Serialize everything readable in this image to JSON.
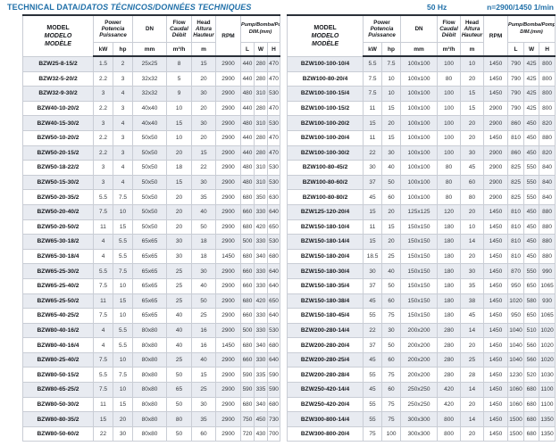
{
  "title": {
    "main": "TECHNICAL DATA/",
    "translations": "DATOS TÉCNICOS/DONNÉES TECHNIQUES",
    "frequency": "50 Hz",
    "speed": "n=2900/1450 1/min"
  },
  "header": {
    "model": [
      "MODEL",
      "MODELO",
      "MODÈLE"
    ],
    "power": [
      "Power",
      "Potencia",
      "Puissance"
    ],
    "dn": "DN",
    "flow": [
      "Flow",
      "Caudal",
      "Débit"
    ],
    "head": [
      "Head",
      "Altura",
      "Hauteur"
    ],
    "rpm": "RPM",
    "dim": [
      "Pump/Bomba/Pompe",
      "DIM.(mm)"
    ],
    "units": {
      "kw": "kW",
      "hp": "hp",
      "mm": "mm",
      "flow": "m³/h",
      "head": "m"
    },
    "dim_units": [
      "L",
      "W",
      "H"
    ]
  },
  "columns": [
    "MODEL",
    "kW",
    "hp",
    "DN (mm)",
    "Flow (m³/h)",
    "Head (m)",
    "RPM",
    "L (mm)",
    "W (mm)",
    "H (mm)"
  ],
  "left_table": {
    "rows": [
      [
        "BZW25-8-15/2",
        "1.5",
        "2",
        "25x25",
        "8",
        "15",
        "2900",
        "440",
        "280",
        "470"
      ],
      [
        "BZW32-5-20/2",
        "2.2",
        "3",
        "32x32",
        "5",
        "20",
        "2900",
        "440",
        "280",
        "470"
      ],
      [
        "BZW32-9-30/2",
        "3",
        "4",
        "32x32",
        "9",
        "30",
        "2900",
        "480",
        "310",
        "530"
      ],
      [
        "BZW40-10-20/2",
        "2.2",
        "3",
        "40x40",
        "10",
        "20",
        "2900",
        "440",
        "280",
        "470"
      ],
      [
        "BZW40-15-30/2",
        "3",
        "4",
        "40x40",
        "15",
        "30",
        "2900",
        "480",
        "310",
        "530"
      ],
      [
        "BZW50-10-20/2",
        "2.2",
        "3",
        "50x50",
        "10",
        "20",
        "2900",
        "440",
        "280",
        "470"
      ],
      [
        "BZW50-20-15/2",
        "2.2",
        "3",
        "50x50",
        "20",
        "15",
        "2900",
        "440",
        "280",
        "470"
      ],
      [
        "BZW50-18-22/2",
        "3",
        "4",
        "50x50",
        "18",
        "22",
        "2900",
        "480",
        "310",
        "530"
      ],
      [
        "BZW50-15-30/2",
        "3",
        "4",
        "50x50",
        "15",
        "30",
        "2900",
        "480",
        "310",
        "530"
      ],
      [
        "BZW50-20-35/2",
        "5.5",
        "7.5",
        "50x50",
        "20",
        "35",
        "2900",
        "680",
        "350",
        "630"
      ],
      [
        "BZW50-20-40/2",
        "7.5",
        "10",
        "50x50",
        "20",
        "40",
        "2900",
        "660",
        "330",
        "640"
      ],
      [
        "BZW50-20-50/2",
        "11",
        "15",
        "50x50",
        "20",
        "50",
        "2900",
        "680",
        "420",
        "650"
      ],
      [
        "BZW65-30-18/2",
        "4",
        "5.5",
        "65x65",
        "30",
        "18",
        "2900",
        "500",
        "330",
        "530"
      ],
      [
        "BZW65-30-18/4",
        "4",
        "5.5",
        "65x65",
        "30",
        "18",
        "1450",
        "680",
        "340",
        "680"
      ],
      [
        "BZW65-25-30/2",
        "5.5",
        "7.5",
        "65x65",
        "25",
        "30",
        "2900",
        "660",
        "330",
        "640"
      ],
      [
        "BZW65-25-40/2",
        "7.5",
        "10",
        "65x65",
        "25",
        "40",
        "2900",
        "660",
        "330",
        "640"
      ],
      [
        "BZW65-25-50/2",
        "11",
        "15",
        "65x65",
        "25",
        "50",
        "2900",
        "680",
        "420",
        "650"
      ],
      [
        "BZW65-40-25/2",
        "7.5",
        "10",
        "65x65",
        "40",
        "25",
        "2900",
        "660",
        "330",
        "640"
      ],
      [
        "BZW80-40-16/2",
        "4",
        "5.5",
        "80x80",
        "40",
        "16",
        "2900",
        "500",
        "330",
        "530"
      ],
      [
        "BZW80-40-16/4",
        "4",
        "5.5",
        "80x80",
        "40",
        "16",
        "1450",
        "680",
        "340",
        "680"
      ],
      [
        "BZW80-25-40/2",
        "7.5",
        "10",
        "80x80",
        "25",
        "40",
        "2900",
        "660",
        "330",
        "640"
      ],
      [
        "BZW80-50-15/2",
        "5.5",
        "7.5",
        "80x80",
        "50",
        "15",
        "2900",
        "590",
        "335",
        "590"
      ],
      [
        "BZW80-65-25/2",
        "7.5",
        "10",
        "80x80",
        "65",
        "25",
        "2900",
        "590",
        "335",
        "590"
      ],
      [
        "BZW80-50-30/2",
        "11",
        "15",
        "80x80",
        "50",
        "30",
        "2900",
        "680",
        "340",
        "680"
      ],
      [
        "BZW80-80-35/2",
        "15",
        "20",
        "80x80",
        "80",
        "35",
        "2900",
        "750",
        "450",
        "730"
      ],
      [
        "BZW80-50-60/2",
        "22",
        "30",
        "80x80",
        "50",
        "60",
        "2900",
        "720",
        "430",
        "700"
      ]
    ]
  },
  "right_table": {
    "rows": [
      [
        "BZW100-100-10/4",
        "5.5",
        "7.5",
        "100x100",
        "100",
        "10",
        "1450",
        "790",
        "425",
        "800"
      ],
      [
        "BZW100-80-20/4",
        "7.5",
        "10",
        "100x100",
        "80",
        "20",
        "1450",
        "790",
        "425",
        "800"
      ],
      [
        "BZW100-100-15/4",
        "7.5",
        "10",
        "100x100",
        "100",
        "15",
        "1450",
        "790",
        "425",
        "800"
      ],
      [
        "BZW100-100-15/2",
        "11",
        "15",
        "100x100",
        "100",
        "15",
        "2900",
        "790",
        "425",
        "800"
      ],
      [
        "BZW100-100-20/2",
        "15",
        "20",
        "100x100",
        "100",
        "20",
        "2900",
        "860",
        "450",
        "820"
      ],
      [
        "BZW100-100-20/4",
        "11",
        "15",
        "100x100",
        "100",
        "20",
        "1450",
        "810",
        "450",
        "880"
      ],
      [
        "BZW100-100-30/2",
        "22",
        "30",
        "100x100",
        "100",
        "30",
        "2900",
        "860",
        "450",
        "820"
      ],
      [
        "BZW100-80-45/2",
        "30",
        "40",
        "100x100",
        "80",
        "45",
        "2900",
        "825",
        "550",
        "840"
      ],
      [
        "BZW100-80-60/2",
        "37",
        "50",
        "100x100",
        "80",
        "60",
        "2900",
        "825",
        "550",
        "840"
      ],
      [
        "BZW100-80-80/2",
        "45",
        "60",
        "100x100",
        "80",
        "80",
        "2900",
        "825",
        "550",
        "840"
      ],
      [
        "BZW125-120-20/4",
        "15",
        "20",
        "125x125",
        "120",
        "20",
        "1450",
        "810",
        "450",
        "880"
      ],
      [
        "BZW150-180-10/4",
        "11",
        "15",
        "150x150",
        "180",
        "10",
        "1450",
        "810",
        "450",
        "880"
      ],
      [
        "BZW150-180-14/4",
        "15",
        "20",
        "150x150",
        "180",
        "14",
        "1450",
        "810",
        "450",
        "880"
      ],
      [
        "BZW150-180-20/4",
        "18.5",
        "25",
        "150x150",
        "180",
        "20",
        "1450",
        "810",
        "450",
        "880"
      ],
      [
        "BZW150-180-30/4",
        "30",
        "40",
        "150x150",
        "180",
        "30",
        "1450",
        "870",
        "550",
        "990"
      ],
      [
        "BZW150-180-35/4",
        "37",
        "50",
        "150x150",
        "180",
        "35",
        "1450",
        "950",
        "650",
        "1065"
      ],
      [
        "BZW150-180-38/4",
        "45",
        "60",
        "150x150",
        "180",
        "38",
        "1450",
        "1020",
        "580",
        "930"
      ],
      [
        "BZW150-180-45/4",
        "55",
        "75",
        "150x150",
        "180",
        "45",
        "1450",
        "950",
        "650",
        "1065"
      ],
      [
        "BZW200-280-14/4",
        "22",
        "30",
        "200x200",
        "280",
        "14",
        "1450",
        "1040",
        "510",
        "1020"
      ],
      [
        "BZW200-280-20/4",
        "37",
        "50",
        "200x200",
        "280",
        "20",
        "1450",
        "1040",
        "560",
        "1020"
      ],
      [
        "BZW200-280-25/4",
        "45",
        "60",
        "200x200",
        "280",
        "25",
        "1450",
        "1040",
        "560",
        "1020"
      ],
      [
        "BZW200-280-28/4",
        "55",
        "75",
        "200x200",
        "280",
        "28",
        "1450",
        "1230",
        "520",
        "1030"
      ],
      [
        "BZW250-420-14/4",
        "45",
        "60",
        "250x250",
        "420",
        "14",
        "1450",
        "1060",
        "680",
        "1100"
      ],
      [
        "BZW250-420-20/4",
        "55",
        "75",
        "250x250",
        "420",
        "20",
        "1450",
        "1060",
        "680",
        "1100"
      ],
      [
        "BZW300-800-14/4",
        "55",
        "75",
        "300x300",
        "800",
        "14",
        "1450",
        "1500",
        "680",
        "1350"
      ],
      [
        "BZW300-800-20/4",
        "75",
        "100",
        "300x300",
        "800",
        "20",
        "1450",
        "1500",
        "680",
        "1350"
      ]
    ]
  },
  "colors": {
    "accent": "#1f6fa8",
    "stripe": "#e8ebf1",
    "border": "#c9cdd5",
    "border-dark": "#2a3038",
    "text": "#33363a",
    "text-dark": "#16181c"
  }
}
